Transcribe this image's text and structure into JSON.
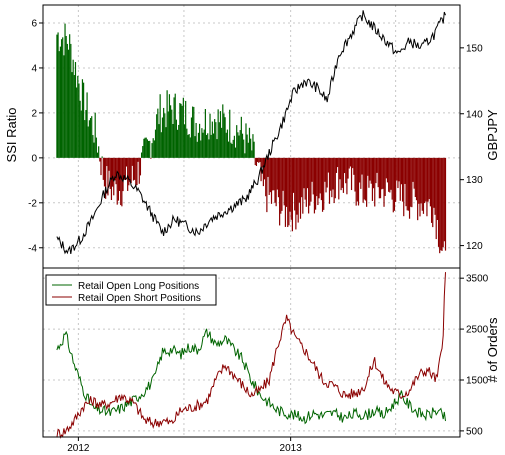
{
  "chart_data": [
    {
      "type": "bar",
      "panel": "top",
      "ylabel": "SSI Ratio",
      "ylabel_right": "GBPJPY",
      "ylim": [
        -4.9,
        6.8
      ],
      "ylim_right": [
        116.6,
        156.5
      ],
      "yticks": [
        "-4",
        "-2",
        "0",
        "2",
        "4",
        "6"
      ],
      "yticks_right": [
        "120",
        "130",
        "140",
        "150"
      ],
      "grid": true,
      "colors": {
        "positive": "#006400",
        "negative": "#8b0000",
        "price": "#000000"
      },
      "ssi_ratio": {
        "x": [
          "2011-11-25",
          "2011-12-15",
          "2012-01-10",
          "2012-02-01",
          "2012-02-15",
          "2012-03-01",
          "2012-03-20",
          "2012-04-10",
          "2012-05-01",
          "2012-05-20",
          "2012-06-10",
          "2012-07-01",
          "2012-07-25",
          "2012-08-20",
          "2012-09-15",
          "2012-10-05",
          "2012-10-25",
          "2012-11-15",
          "2012-12-05",
          "2012-12-25",
          "2013-01-15",
          "2013-02-05",
          "2013-03-01",
          "2013-03-25",
          "2013-04-15",
          "2013-05-05",
          "2013-05-25",
          "2013-06-15",
          "2013-07-05",
          "2013-07-25",
          "2013-08-15",
          "2013-09-05",
          "2013-09-25"
        ],
        "values": [
          5.5,
          5.2,
          2.5,
          1.0,
          -1.0,
          -1.5,
          -1.3,
          -0.8,
          0.5,
          2.0,
          2.2,
          2.0,
          1.5,
          1.8,
          1.5,
          1.2,
          0.5,
          -1.5,
          -2.0,
          -2.5,
          -2.3,
          -1.8,
          -1.5,
          -1.0,
          -1.2,
          -1.6,
          -1.5,
          -1.5,
          -1.8,
          -1.9,
          -2.0,
          -2.2,
          -4.8
        ]
      },
      "price": {
        "name": "GBPJPY",
        "x": [
          "2011-11-25",
          "2011-12-15",
          "2012-01-05",
          "2012-01-25",
          "2012-02-15",
          "2012-03-05",
          "2012-03-25",
          "2012-04-15",
          "2012-05-05",
          "2012-05-25",
          "2012-06-15",
          "2012-07-05",
          "2012-07-25",
          "2012-08-15",
          "2012-09-05",
          "2012-09-25",
          "2012-10-15",
          "2012-11-05",
          "2012-11-25",
          "2012-12-15",
          "2013-01-05",
          "2013-01-25",
          "2013-02-15",
          "2013-03-05",
          "2013-03-25",
          "2013-04-15",
          "2013-05-05",
          "2013-05-25",
          "2013-06-15",
          "2013-07-05",
          "2013-07-25",
          "2013-08-15",
          "2013-09-05",
          "2013-09-25"
        ],
        "values": [
          121,
          119,
          121,
          124,
          128,
          131,
          130,
          128,
          125,
          122,
          124,
          123,
          122,
          124,
          125,
          126,
          127,
          130,
          134,
          138,
          143,
          145,
          144,
          142,
          149,
          152,
          155,
          153,
          151,
          149,
          151,
          150,
          152,
          155
        ]
      }
    },
    {
      "type": "line",
      "panel": "bottom",
      "ylabel_right": "# of Orders",
      "ylim_right": [
        380,
        3700
      ],
      "yticks_right": [
        "500",
        "1500",
        "2500",
        "3500"
      ],
      "x_range": [
        "2011-11-01",
        "2013-10-20"
      ],
      "xticks": [
        {
          "date": "2012-01-01",
          "label": "2012"
        },
        {
          "date": "2013-01-01",
          "label": "2013"
        }
      ],
      "grid": true,
      "legend_position": "top-left",
      "series": [
        {
          "name": "Retail Open Long Positions",
          "color": "#006400",
          "x": [
            "2011-11-25",
            "2011-12-10",
            "2011-12-25",
            "2012-01-10",
            "2012-01-25",
            "2012-02-10",
            "2012-02-25",
            "2012-03-15",
            "2012-04-05",
            "2012-04-25",
            "2012-05-10",
            "2012-05-25",
            "2012-06-10",
            "2012-06-25",
            "2012-07-10",
            "2012-07-25",
            "2012-08-10",
            "2012-08-25",
            "2012-09-10",
            "2012-09-25",
            "2012-10-10",
            "2012-10-25",
            "2012-11-10",
            "2012-11-25",
            "2012-12-10",
            "2012-12-25",
            "2013-01-10",
            "2013-01-25",
            "2013-02-10",
            "2013-02-25",
            "2013-03-15",
            "2013-04-05",
            "2013-04-25",
            "2013-05-10",
            "2013-05-25",
            "2013-06-10",
            "2013-06-25",
            "2013-07-10",
            "2013-07-25",
            "2013-08-10",
            "2013-08-25",
            "2013-09-10",
            "2013-09-25"
          ],
          "values": [
            2100,
            2400,
            1800,
            1300,
            950,
            900,
            850,
            950,
            1100,
            1300,
            1500,
            2050,
            2100,
            2000,
            2150,
            2100,
            2450,
            2200,
            2300,
            2100,
            1900,
            1500,
            1200,
            1050,
            900,
            850,
            800,
            750,
            850,
            800,
            850,
            750,
            850,
            800,
            900,
            800,
            1000,
            1200,
            1000,
            850,
            800,
            900,
            750
          ]
        },
        {
          "name": "Retail Open Short Positions",
          "color": "#8b0000",
          "x": [
            "2011-11-25",
            "2011-12-10",
            "2011-12-25",
            "2012-01-10",
            "2012-01-25",
            "2012-02-10",
            "2012-02-25",
            "2012-03-15",
            "2012-04-05",
            "2012-04-25",
            "2012-05-10",
            "2012-05-25",
            "2012-06-10",
            "2012-06-25",
            "2012-07-10",
            "2012-07-25",
            "2012-08-10",
            "2012-08-25",
            "2012-09-10",
            "2012-09-25",
            "2012-10-10",
            "2012-10-25",
            "2012-11-10",
            "2012-11-25",
            "2012-12-10",
            "2012-12-25",
            "2013-01-10",
            "2013-01-25",
            "2013-02-10",
            "2013-02-25",
            "2013-03-15",
            "2013-04-05",
            "2013-04-25",
            "2013-05-10",
            "2013-05-25",
            "2013-06-10",
            "2013-06-25",
            "2013-07-10",
            "2013-07-25",
            "2013-08-10",
            "2013-08-25",
            "2013-09-10",
            "2013-09-20",
            "2013-09-25"
          ],
          "values": [
            450,
            500,
            700,
            1000,
            1100,
            1000,
            1050,
            1200,
            1050,
            700,
            650,
            700,
            650,
            900,
            950,
            1000,
            1100,
            1500,
            1800,
            1600,
            1400,
            1200,
            1300,
            1500,
            2200,
            2700,
            2300,
            2100,
            1800,
            1500,
            1400,
            1200,
            1250,
            1400,
            1900,
            1500,
            1300,
            1200,
            1300,
            1600,
            1700,
            1500,
            2200,
            3600
          ]
        }
      ]
    }
  ]
}
